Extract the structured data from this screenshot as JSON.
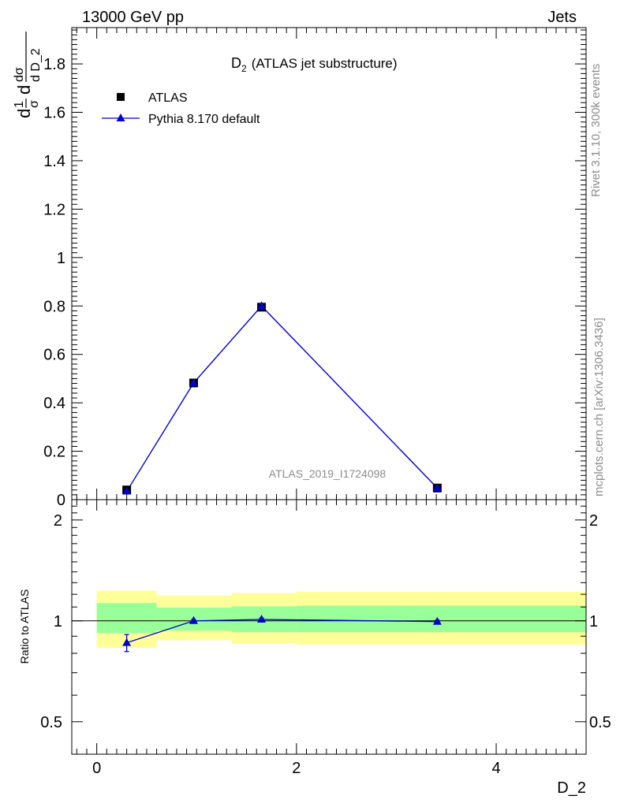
{
  "header": {
    "energy_label": "13000 GeV pp",
    "category_label": "Jets"
  },
  "side_labels": {
    "rivet": "Rivet 3.1.10,  300k events",
    "mcplots": "mcplots.cern.ch [arXiv:1306.3436]"
  },
  "colors": {
    "data_marker": "#000000",
    "mc_line": "#0000cc",
    "band_yellow": "#ffff99",
    "band_green": "#99ff99",
    "side_text": "#8c8c8c"
  },
  "chart_data": [
    {
      "type": "scatter",
      "panel": "main",
      "title_main": "D",
      "title_sub": "2",
      "title_rest": "(ATLAS jet substructure)",
      "ylabel_parts": [
        "d",
        "1",
        "σ",
        "d",
        "dσ",
        "d D_2"
      ],
      "analysis_id": "ATLAS_2019_I1724098",
      "xlim": [
        -0.25,
        4.9
      ],
      "ylim": [
        0,
        1.95
      ],
      "yticks": [
        0.2,
        0.4,
        0.6,
        0.8,
        1,
        1.2,
        1.4,
        1.6,
        1.8
      ],
      "ytick_labels": [
        "0.2",
        "0.4",
        "0.6",
        "0.8",
        "1",
        "1.2",
        "1.4",
        "1.6",
        "1.8"
      ],
      "y_zero_label": "0",
      "legend": [
        "ATLAS",
        "Pythia 8.170 default"
      ],
      "legend_position": "top-left",
      "bins": [
        [
          0,
          0.6
        ],
        [
          0.6,
          1.35
        ],
        [
          1.35,
          2.0
        ],
        [
          2.0,
          4.9
        ]
      ],
      "series": [
        {
          "name": "ATLAS",
          "marker": "square",
          "x": [
            0.3,
            0.97,
            1.65,
            3.41
          ],
          "y": [
            0.04,
            0.482,
            0.795,
            0.048
          ]
        },
        {
          "name": "Pythia 8.170 default",
          "marker": "triangle",
          "x": [
            0.3,
            0.97,
            1.65,
            3.41
          ],
          "y": [
            0.034,
            0.482,
            0.8,
            0.048
          ]
        }
      ]
    },
    {
      "type": "line",
      "panel": "ratio",
      "ylabel": "Ratio to ATLAS",
      "xlabel": "D_2",
      "xlim": [
        -0.25,
        4.9
      ],
      "ylim": [
        0.4,
        2.3
      ],
      "yscale": "log",
      "yticks": [
        0.5,
        1,
        2
      ],
      "ytick_labels": [
        "0.5",
        "1",
        "2"
      ],
      "xticks": [
        0,
        2,
        4
      ],
      "xtick_labels": [
        "0",
        "2",
        "4"
      ],
      "bands": [
        {
          "xlo": 0,
          "xhi": 0.6,
          "yellow": [
            0.83,
            1.23
          ],
          "green": [
            0.92,
            1.13
          ]
        },
        {
          "xlo": 0.6,
          "xhi": 1.35,
          "yellow": [
            0.875,
            1.19
          ],
          "green": [
            0.935,
            1.095
          ]
        },
        {
          "xlo": 1.35,
          "xhi": 2.0,
          "yellow": [
            0.855,
            1.21
          ],
          "green": [
            0.925,
            1.105
          ]
        },
        {
          "xlo": 2.0,
          "xhi": 4.9,
          "yellow": [
            0.85,
            1.22
          ],
          "green": [
            0.925,
            1.11
          ]
        }
      ],
      "series": [
        {
          "name": "Pythia 8.170 default / ATLAS",
          "x": [
            0.3,
            0.97,
            1.65,
            3.41
          ],
          "y": [
            0.86,
            1.0,
            1.01,
            0.995
          ],
          "yerr": [
            0.05,
            0.01,
            0.01,
            0.01
          ]
        }
      ]
    }
  ]
}
